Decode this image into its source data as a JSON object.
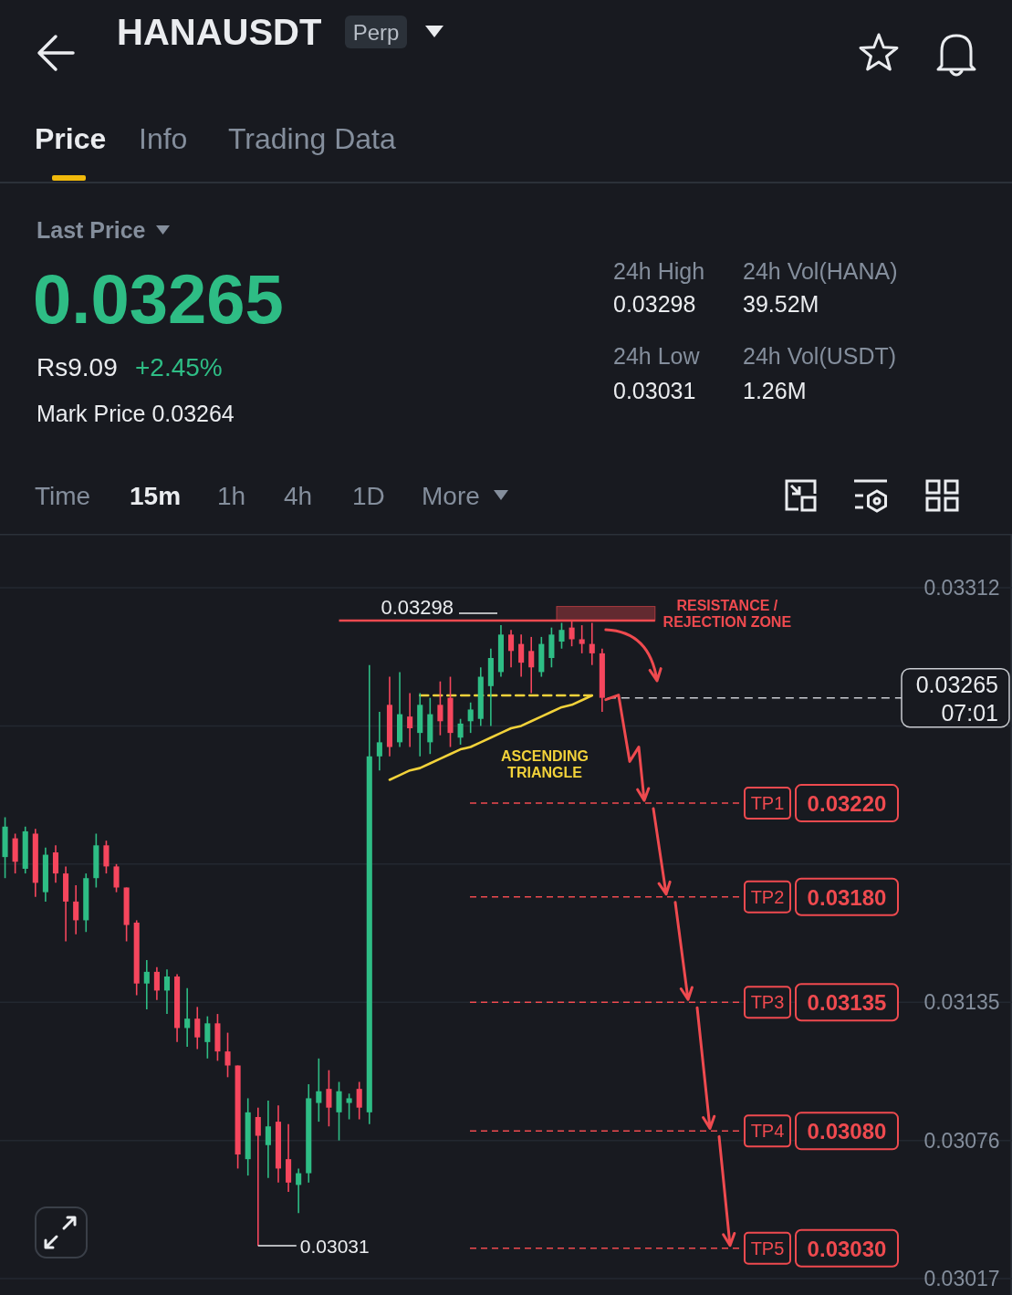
{
  "chart_data": {
    "type": "candlestick",
    "title": "HANAUSDT",
    "annotations": [
      "Perp",
      "Price",
      "Info",
      "Trading Data",
      "Last Price",
      "0.03265",
      "Rs9.09",
      "+2.45%",
      "Mark Price 0.03264",
      "24h High",
      "0.03298",
      "24h Vol(HANA)",
      "39.52M",
      "24h Low",
      "0.03031",
      "24h Vol(USDT)",
      "1.26M",
      "Time",
      "15m",
      "1h",
      "4h",
      "1D",
      "More",
      "ASCENDING TRIANGLE",
      "07:01",
      "0.03031"
    ],
    "categories": [
      null,
      null,
      null,
      null,
      null,
      null,
      null,
      null,
      null,
      null,
      null,
      null,
      null,
      null,
      null,
      null,
      null,
      null,
      null,
      null,
      null,
      null,
      null,
      null,
      null,
      null,
      null,
      null,
      null,
      null,
      null,
      null,
      null,
      null,
      null,
      null,
      null,
      null,
      null,
      null,
      null,
      null,
      null,
      null,
      null,
      null,
      null,
      null,
      null,
      null,
      null,
      null,
      null,
      null,
      null,
      null,
      null,
      null,
      null,
      null,
      null,
      null,
      null,
      null,
      null,
      null,
      null,
      null,
      null,
      null,
      null,
      null,
      null,
      null,
      null,
      null,
      null,
      null,
      null,
      null,
      null,
      null,
      null,
      null,
      null,
      null,
      null,
      null,
      null,
      null,
      null,
      null,
      null,
      null,
      null,
      null,
      null,
      null,
      null,
      null
    ],
    "ohlc": [
      [
        0.03197,
        0.03214,
        0.03188,
        0.0321
      ],
      [
        0.03205,
        0.03207,
        0.0319,
        0.03195
      ],
      [
        0.03192,
        0.0321,
        0.0319,
        0.03208
      ],
      [
        0.03207,
        0.03209,
        0.0318,
        0.03186
      ],
      [
        0.03182,
        0.03201,
        0.03178,
        0.03198
      ],
      [
        0.03199,
        0.03202,
        0.03186,
        0.0319
      ],
      [
        0.0319,
        0.03193,
        0.03161,
        0.03178
      ],
      [
        0.03178,
        0.03185,
        0.03164,
        0.0317
      ],
      [
        0.0317,
        0.0319,
        0.03165,
        0.03188
      ],
      [
        0.03188,
        0.03207,
        0.03184,
        0.03202
      ],
      [
        0.03202,
        0.03204,
        0.0319,
        0.03193
      ],
      [
        0.03193,
        0.03194,
        0.03182,
        0.03184
      ],
      [
        0.03184,
        0.03184,
        0.03161,
        0.03168
      ],
      [
        0.03169,
        0.0317,
        0.03138,
        0.03143
      ],
      [
        0.03143,
        0.03153,
        0.03132,
        0.03148
      ],
      [
        0.03148,
        0.0315,
        0.03136,
        0.0314
      ],
      [
        0.0314,
        0.03149,
        0.0313,
        0.03146
      ],
      [
        0.03146,
        0.03147,
        0.03118,
        0.03124
      ],
      [
        0.03124,
        0.03141,
        0.03116,
        0.03128
      ],
      [
        0.03128,
        0.03133,
        0.03115,
        0.0312
      ],
      [
        0.03118,
        0.03129,
        0.03111,
        0.03126
      ],
      [
        0.03126,
        0.0313,
        0.0311,
        0.03114
      ],
      [
        0.03114,
        0.03122,
        0.03103,
        0.03108
      ],
      [
        0.03108,
        0.03108,
        0.03064,
        0.0307
      ],
      [
        0.03068,
        0.03094,
        0.03061,
        0.03088
      ],
      [
        0.03086,
        0.0309,
        0.03031,
        0.03078
      ],
      [
        0.03074,
        0.03093,
        0.0306,
        0.03082
      ],
      [
        0.03084,
        0.03091,
        0.03058,
        0.03064
      ],
      [
        0.03068,
        0.03083,
        0.03054,
        0.03058
      ],
      [
        0.03057,
        0.03064,
        0.03045,
        0.03062
      ],
      [
        0.03062,
        0.031,
        0.03058,
        0.03094
      ],
      [
        0.03092,
        0.03111,
        0.03084,
        0.03097
      ],
      [
        0.03098,
        0.03106,
        0.03082,
        0.0309
      ],
      [
        0.03088,
        0.03101,
        0.03076,
        0.03097
      ],
      [
        0.03092,
        0.03096,
        0.03085,
        0.03094
      ],
      [
        0.03098,
        0.03101,
        0.03085,
        0.0309
      ],
      [
        0.03088,
        0.03279,
        0.03083,
        0.0324
      ],
      [
        0.0324,
        0.03259,
        0.03234,
        0.03246
      ],
      [
        0.03262,
        0.03274,
        0.0324,
        0.03244
      ],
      [
        0.03246,
        0.03276,
        0.03244,
        0.03258
      ],
      [
        0.03257,
        0.03267,
        0.03244,
        0.03252
      ],
      [
        0.0325,
        0.03267,
        0.0324,
        0.03262
      ],
      [
        0.03246,
        0.03265,
        0.03241,
        0.03258
      ],
      [
        0.03262,
        0.03272,
        0.03249,
        0.03255
      ],
      [
        0.03265,
        0.03274,
        0.03244,
        0.0325
      ],
      [
        0.03248,
        0.03256,
        0.03245,
        0.03254
      ],
      [
        0.03255,
        0.03263,
        0.0325,
        0.0326
      ],
      [
        0.03256,
        0.03278,
        0.03253,
        0.03274
      ],
      [
        0.0327,
        0.03286,
        0.03253,
        0.03282
      ],
      [
        0.03276,
        0.03296,
        0.03274,
        0.03292
      ],
      [
        0.03292,
        0.03294,
        0.03278,
        0.03285
      ],
      [
        0.03288,
        0.03292,
        0.03274,
        0.0328
      ],
      [
        0.03285,
        0.03291,
        0.03267,
        0.03278
      ],
      [
        0.03276,
        0.03291,
        0.03274,
        0.03288
      ],
      [
        0.03282,
        0.03295,
        0.03278,
        0.03292
      ],
      [
        0.03289,
        0.03297,
        0.03286,
        0.03294
      ],
      [
        0.03295,
        0.03298,
        0.03287,
        0.0329
      ],
      [
        0.0329,
        0.03296,
        0.03284,
        0.03288
      ],
      [
        0.03288,
        0.03297,
        0.03279,
        0.03284
      ],
      [
        0.03284,
        0.03286,
        0.03259,
        0.03265
      ],
      null,
      null,
      null,
      null,
      null,
      null,
      null,
      null,
      null,
      null,
      null,
      null,
      null,
      null,
      null,
      null,
      null,
      null,
      null,
      null,
      null,
      null,
      null,
      null,
      null,
      null,
      null,
      null,
      null,
      null,
      null,
      null,
      null,
      null,
      null,
      null,
      null,
      null,
      null,
      null
    ],
    "colors": [
      "#2ebd85",
      "#f6465d",
      "#2ebd85",
      "#f6465d",
      "#2ebd85",
      "#f6465d",
      "#f6465d",
      "#f6465d",
      "#2ebd85",
      "#2ebd85",
      "#f6465d",
      "#f6465d",
      "#f6465d",
      "#f6465d",
      "#2ebd85",
      "#f6465d",
      "#2ebd85",
      "#f6465d",
      "#2ebd85",
      "#f6465d",
      "#2ebd85",
      "#f6465d",
      "#f6465d",
      "#f6465d",
      "#2ebd85",
      "#f6465d",
      "#2ebd85",
      "#f6465d",
      "#f6465d",
      "#2ebd85",
      "#2ebd85",
      "#2ebd85",
      "#f6465d",
      "#2ebd85",
      "#2ebd85",
      "#f6465d",
      "#2ebd85",
      "#2ebd85",
      "#f6465d",
      "#2ebd85",
      "#f6465d",
      "#2ebd85",
      "#2ebd85",
      "#f6465d",
      "#f6465d",
      "#2ebd85",
      "#2ebd85",
      "#2ebd85",
      "#2ebd85",
      "#2ebd85",
      "#f6465d",
      "#f6465d",
      "#f6465d",
      "#2ebd85",
      "#2ebd85",
      "#2ebd85",
      "#f6465d",
      "#f6465d",
      "#f6465d",
      "#f6465d",
      null,
      null,
      null,
      null,
      null,
      null,
      null,
      null,
      null,
      null,
      null,
      null,
      null,
      null,
      null,
      null,
      null,
      null,
      null,
      null,
      null,
      null,
      null,
      null,
      null,
      null,
      null,
      null,
      null,
      null,
      null,
      null,
      null,
      null,
      null,
      null,
      null,
      null,
      null,
      null
    ],
    "series": [
      {
        "type": "line",
        "color": "#f2d23a",
        "values": [
          null,
          null,
          null,
          null,
          null,
          null,
          null,
          null,
          null,
          null,
          null,
          null,
          null,
          null,
          null,
          null,
          null,
          null,
          null,
          null,
          null,
          null,
          null,
          null,
          null,
          null,
          null,
          null,
          null,
          null,
          null,
          null,
          null,
          null,
          null,
          null,
          null,
          null,
          0.0323,
          0.03232,
          0.03234,
          0.03235,
          0.03237,
          0.03239,
          0.03241,
          0.03243,
          0.03244,
          0.03246,
          0.03248,
          0.0325,
          0.03252,
          0.03253,
          0.03255,
          0.03257,
          0.03259,
          0.03261,
          0.03262,
          0.03264,
          0.03266,
          null,
          null,
          null,
          null,
          null,
          null,
          null,
          null,
          null,
          null,
          null,
          null,
          null,
          null,
          null,
          null,
          null,
          null,
          null,
          null,
          null,
          null,
          null,
          null,
          null,
          null,
          null,
          null,
          null,
          null,
          null,
          null,
          null,
          null,
          null,
          null,
          null,
          null,
          null,
          null,
          null
        ]
      },
      {
        "type": "line",
        "color": "#f2d23a",
        "line_style": "dashed",
        "values": [
          null,
          null,
          null,
          null,
          null,
          null,
          null,
          null,
          null,
          null,
          null,
          null,
          null,
          null,
          null,
          null,
          null,
          null,
          null,
          null,
          null,
          null,
          null,
          null,
          null,
          null,
          null,
          null,
          null,
          null,
          null,
          null,
          null,
          null,
          null,
          null,
          null,
          null,
          null,
          null,
          null,
          0.03266,
          0.03266,
          0.03266,
          0.03266,
          0.03266,
          0.03266,
          0.03266,
          0.03266,
          0.03266,
          0.03266,
          0.03266,
          0.03266,
          0.03266,
          0.03266,
          0.03266,
          0.03266,
          0.03266,
          0.03266,
          null,
          null,
          null,
          null,
          null,
          null,
          null,
          null,
          null,
          null,
          null,
          null,
          null,
          null,
          null,
          null,
          null,
          null,
          null,
          null,
          null,
          null,
          null,
          null,
          null,
          null,
          null,
          null,
          null,
          null,
          null,
          null,
          null,
          null,
          null,
          null,
          null,
          null,
          null,
          null,
          null
        ]
      }
    ],
    "ylim": [
      0.0301,
      0.03335
    ],
    "yticks": [
      0.03312,
      {
        "value": 0.03253,
        "label": null
      },
      {
        "value": 0.03194,
        "label": null
      },
      0.03135,
      0.03076,
      0.03017
    ],
    "grid": "y",
    "tick_labels": "y",
    "ref_lines": [
      {
        "axis": "y",
        "value": 0.03298,
        "label": null,
        "color": "#ef4a4f",
        "line_style": "solid"
      },
      {
        "axis": "y",
        "value": 0.03265,
        "label": null,
        "color": "#c9ccd1",
        "line_style": "dashed"
      },
      {
        "axis": "y",
        "value": 0.0322,
        "label": "TP1 0.03220",
        "color": "#ef4a4f",
        "line_style": "dashed"
      },
      {
        "axis": "y",
        "value": 0.0318,
        "label": "TP2 0.03180",
        "color": "#ef4a4f",
        "line_style": "dashed"
      },
      {
        "axis": "y",
        "value": 0.03135,
        "label": "TP3 0.03135",
        "color": "#ef4a4f",
        "line_style": "dashed"
      },
      {
        "axis": "y",
        "value": 0.0308,
        "label": "TP4 0.03080",
        "color": "#ef4a4f",
        "line_style": "dashed"
      },
      {
        "axis": "y",
        "value": 0.0303,
        "label": "TP5 0.03030",
        "color": "#ef4a4f",
        "line_style": "dashed"
      }
    ],
    "bands": [
      {
        "axis": "y",
        "from": 0.03298,
        "to": 0.03304,
        "label": "RESISTANCE / REJECTION ZONE",
        "color": "#ef4a4f"
      }
    ]
  }
}
